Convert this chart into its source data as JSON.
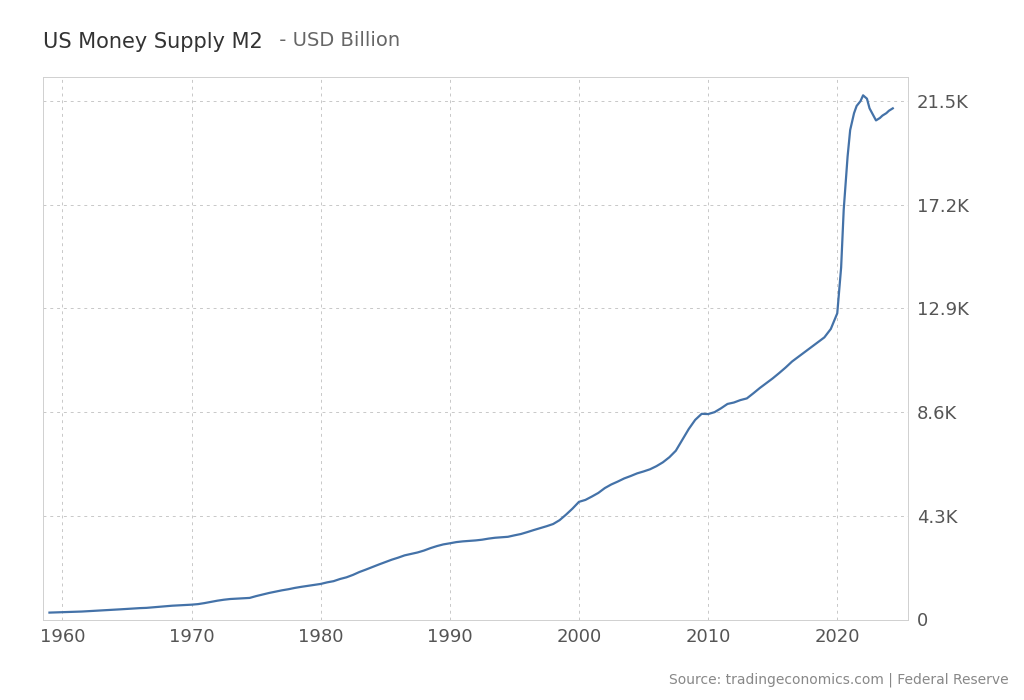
{
  "title_bold": "US Money Supply M2",
  "title_normal": " - USD Billion",
  "line_color": "#4472a8",
  "background_color": "#ffffff",
  "plot_bg_color": "#ffffff",
  "grid_color": "#c8c8c8",
  "ytick_labels": [
    "0",
    "4.3K",
    "8.6K",
    "12.9K",
    "17.2K",
    "21.5K"
  ],
  "ytick_values": [
    0,
    4300,
    8600,
    12900,
    17200,
    21500
  ],
  "xtick_labels": [
    "1960",
    "1970",
    "1980",
    "1990",
    "2000",
    "2010",
    "2020"
  ],
  "xtick_values": [
    1960,
    1970,
    1980,
    1990,
    2000,
    2010,
    2020
  ],
  "ylim": [
    0,
    22500
  ],
  "xlim": [
    1958.5,
    2025.5
  ],
  "source_text": "Source: tradingeconomics.com | Federal Reserve",
  "line_width": 1.6,
  "title_fontsize": 15,
  "tick_fontsize": 13,
  "source_fontsize": 10,
  "data": {
    "years": [
      1959.0,
      1959.5,
      1960.0,
      1960.5,
      1961.0,
      1961.5,
      1962.0,
      1962.5,
      1963.0,
      1963.5,
      1964.0,
      1964.5,
      1965.0,
      1965.5,
      1966.0,
      1966.5,
      1967.0,
      1967.5,
      1968.0,
      1968.5,
      1969.0,
      1969.5,
      1970.0,
      1970.5,
      1971.0,
      1971.5,
      1972.0,
      1972.5,
      1973.0,
      1973.5,
      1974.0,
      1974.5,
      1975.0,
      1975.5,
      1976.0,
      1976.5,
      1977.0,
      1977.5,
      1978.0,
      1978.5,
      1979.0,
      1979.5,
      1980.0,
      1980.5,
      1981.0,
      1981.5,
      1982.0,
      1982.5,
      1983.0,
      1983.5,
      1984.0,
      1984.5,
      1985.0,
      1985.5,
      1986.0,
      1986.5,
      1987.0,
      1987.5,
      1988.0,
      1988.5,
      1989.0,
      1989.5,
      1990.0,
      1990.5,
      1991.0,
      1991.5,
      1992.0,
      1992.5,
      1993.0,
      1993.5,
      1994.0,
      1994.5,
      1995.0,
      1995.5,
      1996.0,
      1996.5,
      1997.0,
      1997.5,
      1998.0,
      1998.5,
      1999.0,
      1999.5,
      2000.0,
      2000.5,
      2001.0,
      2001.5,
      2002.0,
      2002.5,
      2003.0,
      2003.5,
      2004.0,
      2004.5,
      2005.0,
      2005.5,
      2006.0,
      2006.5,
      2007.0,
      2007.5,
      2008.0,
      2008.5,
      2009.0,
      2009.5,
      2010.0,
      2010.5,
      2011.0,
      2011.5,
      2012.0,
      2012.5,
      2013.0,
      2013.5,
      2014.0,
      2014.5,
      2015.0,
      2015.5,
      2016.0,
      2016.5,
      2017.0,
      2017.5,
      2018.0,
      2018.5,
      2019.0,
      2019.5,
      2020.0,
      2020.3,
      2020.5,
      2020.8,
      2021.0,
      2021.3,
      2021.5,
      2021.8,
      2022.0,
      2022.3,
      2022.5,
      2022.8,
      2023.0,
      2023.3,
      2023.5,
      2023.8,
      2024.0,
      2024.3
    ],
    "values": [
      286,
      295,
      303,
      310,
      320,
      330,
      345,
      358,
      372,
      387,
      405,
      422,
      440,
      455,
      472,
      482,
      505,
      528,
      553,
      572,
      585,
      595,
      615,
      638,
      680,
      730,
      780,
      820,
      850,
      865,
      880,
      895,
      970,
      1035,
      1100,
      1155,
      1210,
      1255,
      1310,
      1355,
      1395,
      1435,
      1475,
      1540,
      1590,
      1680,
      1750,
      1850,
      1970,
      2070,
      2175,
      2280,
      2380,
      2480,
      2565,
      2660,
      2720,
      2780,
      2860,
      2960,
      3045,
      3115,
      3160,
      3210,
      3240,
      3260,
      3280,
      3310,
      3355,
      3390,
      3410,
      3430,
      3490,
      3545,
      3625,
      3710,
      3790,
      3870,
      3960,
      4120,
      4350,
      4600,
      4880,
      4960,
      5100,
      5250,
      5450,
      5600,
      5720,
      5850,
      5950,
      6060,
      6140,
      6230,
      6360,
      6520,
      6730,
      7000,
      7450,
      7900,
      8280,
      8530,
      8520,
      8600,
      8760,
      8940,
      9000,
      9100,
      9170,
      9380,
      9600,
      9800,
      10000,
      10220,
      10450,
      10700,
      10900,
      11100,
      11300,
      11500,
      11700,
      12050,
      12700,
      14600,
      17000,
      19200,
      20300,
      21000,
      21300,
      21500,
      21740,
      21600,
      21200,
      20900,
      20700,
      20800,
      20900,
      21000,
      21100,
      21200
    ]
  }
}
